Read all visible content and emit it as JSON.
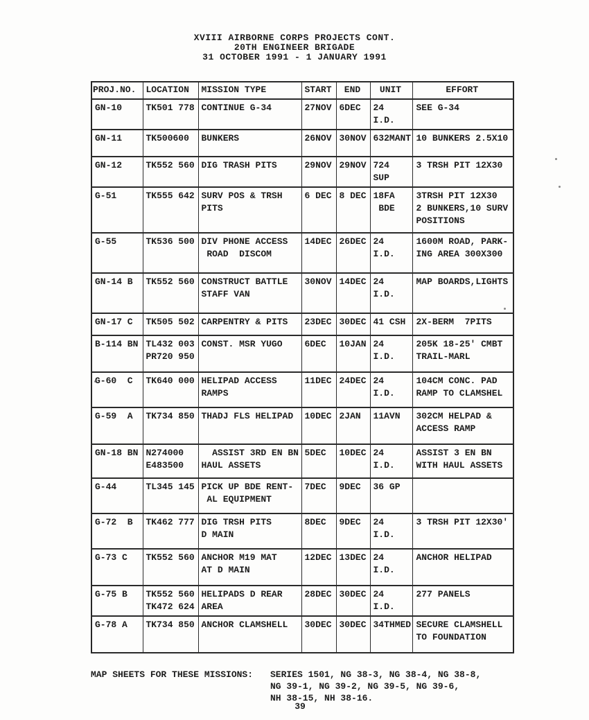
{
  "page": {
    "title_lines": [
      "XVIII AIRBORNE CORPS PROJECTS CONT.",
      "20TH ENGINEER BRIGADE",
      "31 OCTOBER 1991 - 1 JANUARY 1991"
    ],
    "page_number": "39"
  },
  "table": {
    "columns": [
      "PROJ.NO.",
      "LOCATION",
      "MISSION TYPE",
      "START",
      "END",
      "UNIT",
      "EFFORT"
    ],
    "rows": [
      [
        "GN-10",
        "TK501 778",
        "CONTINUE G-34",
        "27NOV",
        "6DEC",
        "24 I.D.",
        "SEE G-34"
      ],
      [
        "GN-11",
        "TK500600",
        "BUNKERS",
        "26NOV",
        "30NOV",
        "632MANT",
        "10 BUNKERS 2.5X10"
      ],
      [
        "GN-12",
        "TK552 560",
        "DIG TRASH PITS",
        "29NOV",
        "29NOV",
        "724 SUP",
        "3 TRSH PIT 12X30"
      ],
      [
        "G-51",
        "TK555 642",
        "SURV POS & TRSH\nPITS",
        "6 DEC",
        "8 DEC",
        "18FA\n BDE",
        "3TRSH PIT 12X30\n2 BUNKERS,10 SURV\nPOSITIONS"
      ],
      [
        "G-55",
        "TK536 500",
        "DIV PHONE ACCESS\n ROAD  DISCOM",
        "14DEC",
        "26DEC",
        "24 I.D.",
        "1600M ROAD, PARK-\nING AREA 300X300"
      ],
      [
        "GN-14 B",
        "TK552 560",
        "CONSTRUCT BATTLE\nSTAFF VAN",
        "30NOV",
        "14DEC",
        "24 I.D.",
        "MAP BOARDS,LIGHTS"
      ],
      [
        "GN-17 C",
        "TK505 502",
        "CARPENTRY & PITS",
        "23DEC",
        "30DEC",
        "41 CSH",
        "2X-BERM  7PITS"
      ],
      [
        "B-114 BN",
        "TL432 003\nPR720 950",
        "CONST. MSR YUGO",
        "6DEC",
        "10JAN",
        "24 I.D.",
        "205K 18-25' CMBT\nTRAIL-MARL"
      ],
      [
        "G-60  C",
        "TK640 000",
        "HELIPAD ACCESS\nRAMPS",
        "11DEC",
        "24DEC",
        "24 I.D.",
        "104CM CONC. PAD\nRAMP TO CLAMSHEL"
      ],
      [
        "G-59  A",
        "TK734 850",
        "THADJ FLS HELIPAD",
        "10DEC",
        "2JAN",
        "11AVN",
        "302CM HELPAD &\nACCESS RAMP"
      ],
      [
        "GN-18 BN",
        "N274000\nE483500",
        "  ASSIST 3RD EN BN\nHAUL ASSETS",
        "5DEC",
        "10DEC",
        "24 I.D.",
        "ASSIST 3 EN BN\nWITH HAUL ASSETS"
      ],
      [
        "G-44",
        "TL345 145",
        "PICK UP BDE RENT-\n AL EQUIPMENT",
        "7DEC",
        "9DEC",
        "36 GP",
        ""
      ],
      [
        "G-72  B",
        "TK462 777",
        "DIG TRSH PITS\nD MAIN",
        "8DEC",
        "9DEC",
        "24 I.D.",
        "3 TRSH PIT 12X30'"
      ],
      [
        "G-73 C",
        "TK552 560",
        "ANCHOR M19 MAT\nAT D MAIN",
        "12DEC",
        "13DEC",
        "24 I.D.",
        "ANCHOR HELIPAD"
      ],
      [
        "G-75 B",
        "TK552 560\nTK472 624",
        "HELIPADS D REAR\nAREA",
        "28DEC",
        "30DEC",
        "24 I.D.",
        "277 PANELS"
      ],
      [
        "G-78 A",
        "TK734 850",
        "ANCHOR CLAMSHELL",
        "30DEC",
        "30DEC",
        "34THMED",
        "SECURE CLAMSHELL\nTO FOUNDATION"
      ]
    ]
  },
  "footer": {
    "label": "MAP SHEETS FOR THESE MISSIONS:",
    "lines": [
      "SERIES 1501, NG 38-3, NG 38-4, NG 38-8,",
      "NG 39-1, NG 39-2, NG 39-5, NG 39-6,",
      "NH 38-15, NH 38-16."
    ]
  }
}
